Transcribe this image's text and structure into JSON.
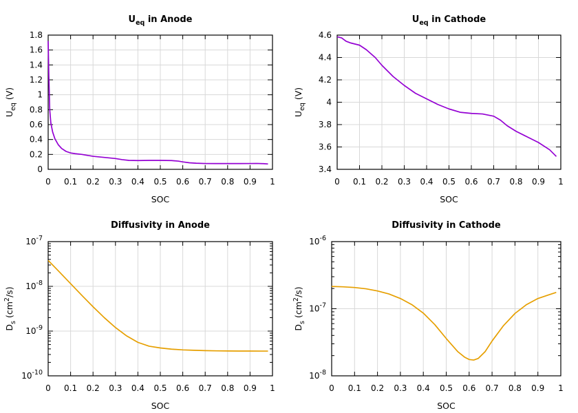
{
  "chart_data": [
    {
      "id": "anode-ueq",
      "type": "line",
      "title_main": "U",
      "title_sub": "eq",
      "title_rest": " in Anode",
      "xlabel": "SOC",
      "ylabel_main": "U",
      "ylabel_sub": "eq",
      "ylabel_rest": " (V)",
      "xlim": [
        0,
        1
      ],
      "ylim": [
        0,
        1.8
      ],
      "yscale": "linear",
      "grid": true,
      "xticks": [
        0,
        0.1,
        0.2,
        0.3,
        0.4,
        0.5,
        0.6,
        0.7,
        0.8,
        0.9,
        1
      ],
      "xtick_labels": [
        "0",
        "0.1",
        "0.2",
        "0.3",
        "0.4",
        "0.5",
        "0.6",
        "0.7",
        "0.8",
        "0.9",
        "1"
      ],
      "yticks": [
        0,
        0.2,
        0.4,
        0.6,
        0.8,
        1,
        1.2,
        1.4,
        1.6,
        1.8
      ],
      "ytick_labels": [
        "0",
        "0.2",
        "0.4",
        "0.6",
        "0.8",
        "1",
        "1.2",
        "1.4",
        "1.6",
        "1.8"
      ],
      "color": "#9400d3",
      "series": [
        {
          "x": [
            0.0,
            0.003,
            0.007,
            0.012,
            0.02,
            0.03,
            0.045,
            0.06,
            0.08,
            0.1,
            0.12,
            0.15,
            0.2,
            0.25,
            0.3,
            0.33,
            0.36,
            0.4,
            0.45,
            0.5,
            0.55,
            0.58,
            0.6,
            0.63,
            0.66,
            0.7,
            0.75,
            0.8,
            0.85,
            0.9,
            0.93,
            0.96,
            0.98
          ],
          "y": [
            1.72,
            1.25,
            0.8,
            0.62,
            0.5,
            0.41,
            0.33,
            0.28,
            0.24,
            0.22,
            0.21,
            0.2,
            0.175,
            0.16,
            0.145,
            0.13,
            0.12,
            0.118,
            0.12,
            0.12,
            0.118,
            0.11,
            0.1,
            0.088,
            0.082,
            0.078,
            0.077,
            0.077,
            0.077,
            0.078,
            0.079,
            0.076,
            0.072
          ]
        }
      ]
    },
    {
      "id": "cathode-ueq",
      "type": "line",
      "title_main": "U",
      "title_sub": "eq",
      "title_rest": " in Cathode",
      "xlabel": "SOC",
      "ylabel_main": "U",
      "ylabel_sub": "eq",
      "ylabel_rest": " (V)",
      "xlim": [
        0,
        1
      ],
      "ylim": [
        3.4,
        4.6
      ],
      "yscale": "linear",
      "grid": true,
      "xticks": [
        0,
        0.1,
        0.2,
        0.3,
        0.4,
        0.5,
        0.6,
        0.7,
        0.8,
        0.9,
        1
      ],
      "xtick_labels": [
        "0",
        "0.1",
        "0.2",
        "0.3",
        "0.4",
        "0.5",
        "0.6",
        "0.7",
        "0.8",
        "0.9",
        "1"
      ],
      "yticks": [
        3.4,
        3.6,
        3.8,
        4,
        4.2,
        4.4,
        4.6
      ],
      "ytick_labels": [
        "3.4",
        "3.6",
        "3.8",
        "4",
        "4.2",
        "4.4",
        "4.6"
      ],
      "color": "#9400d3",
      "series": [
        {
          "x": [
            0.0,
            0.02,
            0.04,
            0.06,
            0.1,
            0.13,
            0.17,
            0.2,
            0.25,
            0.3,
            0.35,
            0.4,
            0.45,
            0.5,
            0.55,
            0.6,
            0.65,
            0.7,
            0.73,
            0.76,
            0.8,
            0.85,
            0.9,
            0.95,
            0.98
          ],
          "y": [
            4.585,
            4.575,
            4.545,
            4.53,
            4.51,
            4.47,
            4.4,
            4.33,
            4.23,
            4.15,
            4.08,
            4.03,
            3.98,
            3.94,
            3.91,
            3.9,
            3.895,
            3.875,
            3.84,
            3.79,
            3.74,
            3.69,
            3.64,
            3.575,
            3.515
          ]
        }
      ]
    },
    {
      "id": "anode-diffusivity",
      "type": "line",
      "title_main": "Diffusivity in Anode",
      "title_sub": "",
      "title_rest": "",
      "xlabel": "SOC",
      "ylabel_main": "D",
      "ylabel_sub": "s",
      "ylabel_rest": " (cm",
      "ylabel_sup": "2",
      "ylabel_end": "/s)",
      "xlim": [
        0,
        1
      ],
      "ylim": [
        1e-10,
        1e-07
      ],
      "yscale": "log",
      "grid": true,
      "xticks": [
        0,
        0.1,
        0.2,
        0.3,
        0.4,
        0.5,
        0.6,
        0.7,
        0.8,
        0.9,
        1
      ],
      "xtick_labels": [
        "0",
        "0.1",
        "0.2",
        "0.3",
        "0.4",
        "0.5",
        "0.6",
        "0.7",
        "0.8",
        "0.9",
        "1"
      ],
      "yticks": [
        1e-10,
        1e-09,
        1e-08,
        1e-07
      ],
      "ytick_bases": [
        "10",
        "10",
        "10",
        "10"
      ],
      "ytick_exps": [
        "-10",
        "-9",
        "-8",
        "-7"
      ],
      "color": "#e69f00",
      "series": [
        {
          "x": [
            0.0,
            0.05,
            0.1,
            0.15,
            0.2,
            0.25,
            0.3,
            0.35,
            0.4,
            0.45,
            0.5,
            0.55,
            0.6,
            0.65,
            0.7,
            0.75,
            0.8,
            0.85,
            0.9,
            0.95,
            0.98
          ],
          "y": [
            3.8e-08,
            2.1e-08,
            1.15e-08,
            6.3e-09,
            3.5e-09,
            2e-09,
            1.2e-09,
            7.8e-10,
            5.6e-10,
            4.6e-10,
            4.2e-10,
            3.95e-10,
            3.8e-10,
            3.72e-10,
            3.66e-10,
            3.62e-10,
            3.6e-10,
            3.58e-10,
            3.58e-10,
            3.57e-10,
            3.57e-10
          ]
        }
      ]
    },
    {
      "id": "cathode-diffusivity",
      "type": "line",
      "title_main": "Diffusivity in Cathode",
      "title_sub": "",
      "title_rest": "",
      "xlabel": "SOC",
      "ylabel_main": "D",
      "ylabel_sub": "s",
      "ylabel_rest": " (cm",
      "ylabel_sup": "2",
      "ylabel_end": "/s)",
      "xlim": [
        0,
        1
      ],
      "ylim": [
        1e-08,
        1e-06
      ],
      "yscale": "log",
      "grid": true,
      "xticks": [
        0,
        0.1,
        0.2,
        0.3,
        0.4,
        0.5,
        0.6,
        0.7,
        0.8,
        0.9,
        1
      ],
      "xtick_labels": [
        "0",
        "0.1",
        "0.2",
        "0.3",
        "0.4",
        "0.5",
        "0.6",
        "0.7",
        "0.8",
        "0.9",
        "1"
      ],
      "yticks": [
        1e-08,
        1e-07,
        1e-06
      ],
      "ytick_bases": [
        "10",
        "10",
        "10"
      ],
      "ytick_exps": [
        "-8",
        "-7",
        "-6"
      ],
      "color": "#e69f00",
      "series": [
        {
          "x": [
            0.0,
            0.05,
            0.1,
            0.15,
            0.2,
            0.25,
            0.3,
            0.35,
            0.4,
            0.45,
            0.5,
            0.55,
            0.58,
            0.6,
            0.62,
            0.64,
            0.67,
            0.7,
            0.75,
            0.8,
            0.85,
            0.9,
            0.95,
            0.98
          ],
          "y": [
            2.15e-07,
            2.12e-07,
            2.07e-07,
            1.98e-07,
            1.84e-07,
            1.66e-07,
            1.42e-07,
            1.15e-07,
            8.6e-08,
            5.8e-08,
            3.6e-08,
            2.3e-08,
            1.9e-08,
            1.75e-08,
            1.72e-08,
            1.82e-08,
            2.3e-08,
            3.3e-08,
            5.6e-08,
            8.5e-08,
            1.15e-07,
            1.42e-07,
            1.62e-07,
            1.75e-07
          ]
        }
      ]
    }
  ]
}
